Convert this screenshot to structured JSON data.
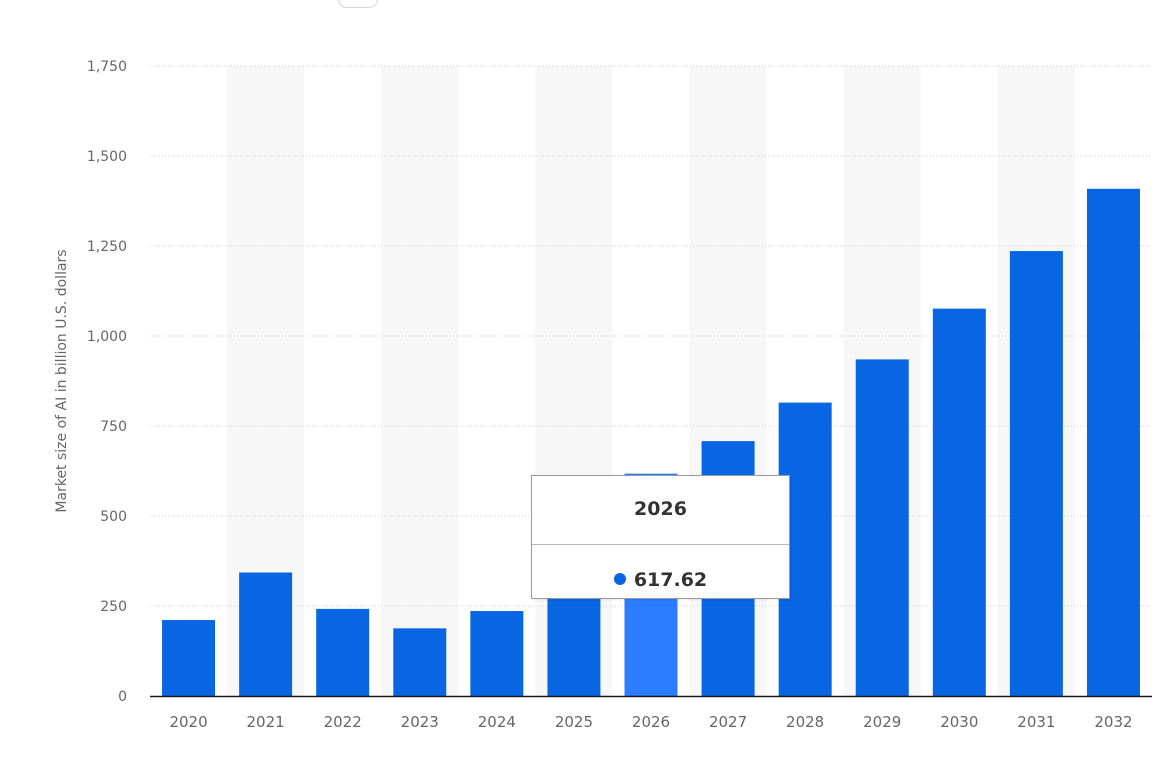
{
  "chart_data": {
    "type": "bar",
    "title": "",
    "xlabel": "",
    "ylabel": "Market size of AI in billion U.S. dollars",
    "categories": [
      "2020",
      "2021",
      "2022",
      "2023",
      "2024",
      "2025",
      "2026",
      "2027",
      "2028",
      "2029",
      "2030",
      "2031",
      "2032"
    ],
    "values": [
      211,
      343,
      242,
      188,
      236,
      420,
      617.62,
      708,
      815,
      935,
      1076,
      1236,
      1409
    ],
    "ylim": [
      0,
      1750
    ],
    "yticks": [
      0,
      250,
      500,
      750,
      1000,
      1250,
      1500,
      1750
    ],
    "ytick_labels": [
      "0",
      "250",
      "500",
      "750",
      "1,000",
      "1,250",
      "1,500",
      "1,750"
    ],
    "grid": true,
    "highlighted_category": "2026"
  },
  "tooltip": {
    "title": "2026",
    "value": "617.62"
  },
  "colors": {
    "bar": "#0866e3",
    "bar_highlight": "#2b7cff",
    "gridline": "#cfcfcf",
    "axis": "#1a1a1a",
    "band": "#f7f7f7",
    "tooltip_dot": "#0866e3"
  }
}
